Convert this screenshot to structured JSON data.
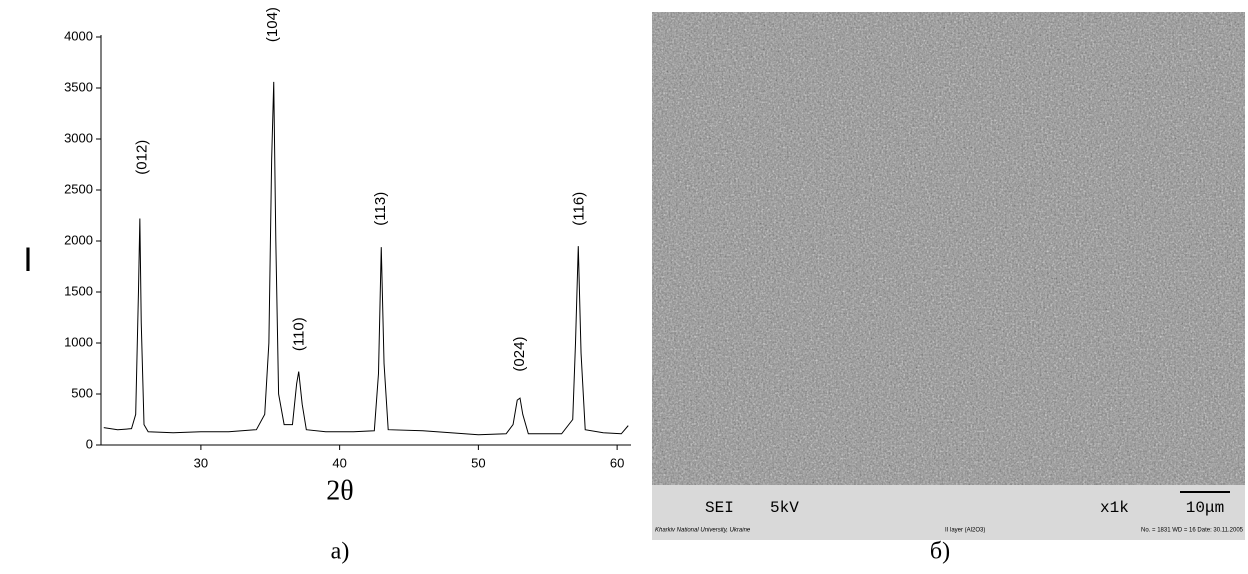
{
  "chart_data": {
    "type": "line",
    "x_label": "2θ",
    "y_label": "I",
    "x": [
      23.0,
      24.0,
      25.0,
      25.3,
      25.5,
      25.6,
      25.7,
      25.9,
      26.2,
      28,
      30,
      32,
      34,
      34.6,
      34.9,
      35.1,
      35.25,
      35.4,
      35.6,
      36.0,
      36.6,
      36.9,
      37.05,
      37.3,
      37.6,
      39,
      41,
      42.5,
      42.8,
      43.0,
      43.2,
      43.5,
      46,
      50,
      52,
      52.5,
      52.8,
      53.0,
      53.2,
      53.6,
      56,
      56.8,
      57.0,
      57.2,
      57.4,
      57.7,
      59,
      60.3,
      60.8
    ],
    "values": [
      170,
      150,
      160,
      300,
      1500,
      2220,
      1200,
      200,
      130,
      120,
      130,
      130,
      150,
      300,
      1000,
      2800,
      3560,
      2000,
      500,
      200,
      200,
      600,
      720,
      400,
      150,
      130,
      130,
      140,
      700,
      1940,
      800,
      150,
      140,
      100,
      110,
      200,
      440,
      460,
      300,
      110,
      110,
      250,
      1000,
      1950,
      900,
      150,
      120,
      110,
      190
    ],
    "color": "#000000",
    "xlim": [
      22.8,
      61
    ],
    "xticks": [
      30,
      40,
      50,
      60
    ],
    "ylim": [
      0,
      4000
    ],
    "yticks": [
      0,
      500,
      1000,
      1500,
      2000,
      2500,
      3000,
      3500,
      4000
    ],
    "annotations": [
      {
        "text": "(012)",
        "x": 25.8,
        "y": 2650
      },
      {
        "text": "(104)",
        "x": 35.2,
        "y": 3950
      },
      {
        "text": "(110)",
        "x": 37.1,
        "y": 920
      },
      {
        "text": "(113)",
        "x": 43.0,
        "y": 2150
      },
      {
        "text": "(024)",
        "x": 53.0,
        "y": 720
      },
      {
        "text": "(116)",
        "x": 57.3,
        "y": 2150
      }
    ]
  },
  "panel_labels": [
    "а)",
    "б)"
  ],
  "sem_image": {
    "detector": "SEI",
    "voltage": "5kV",
    "magnification": "x1k",
    "scale": "10μm",
    "institution": "Kharkiv National University, Ukraine",
    "sample": "II layer (Al2O3)",
    "info": "No. = 1831   WD = 16   Date: 30.11.2005"
  }
}
